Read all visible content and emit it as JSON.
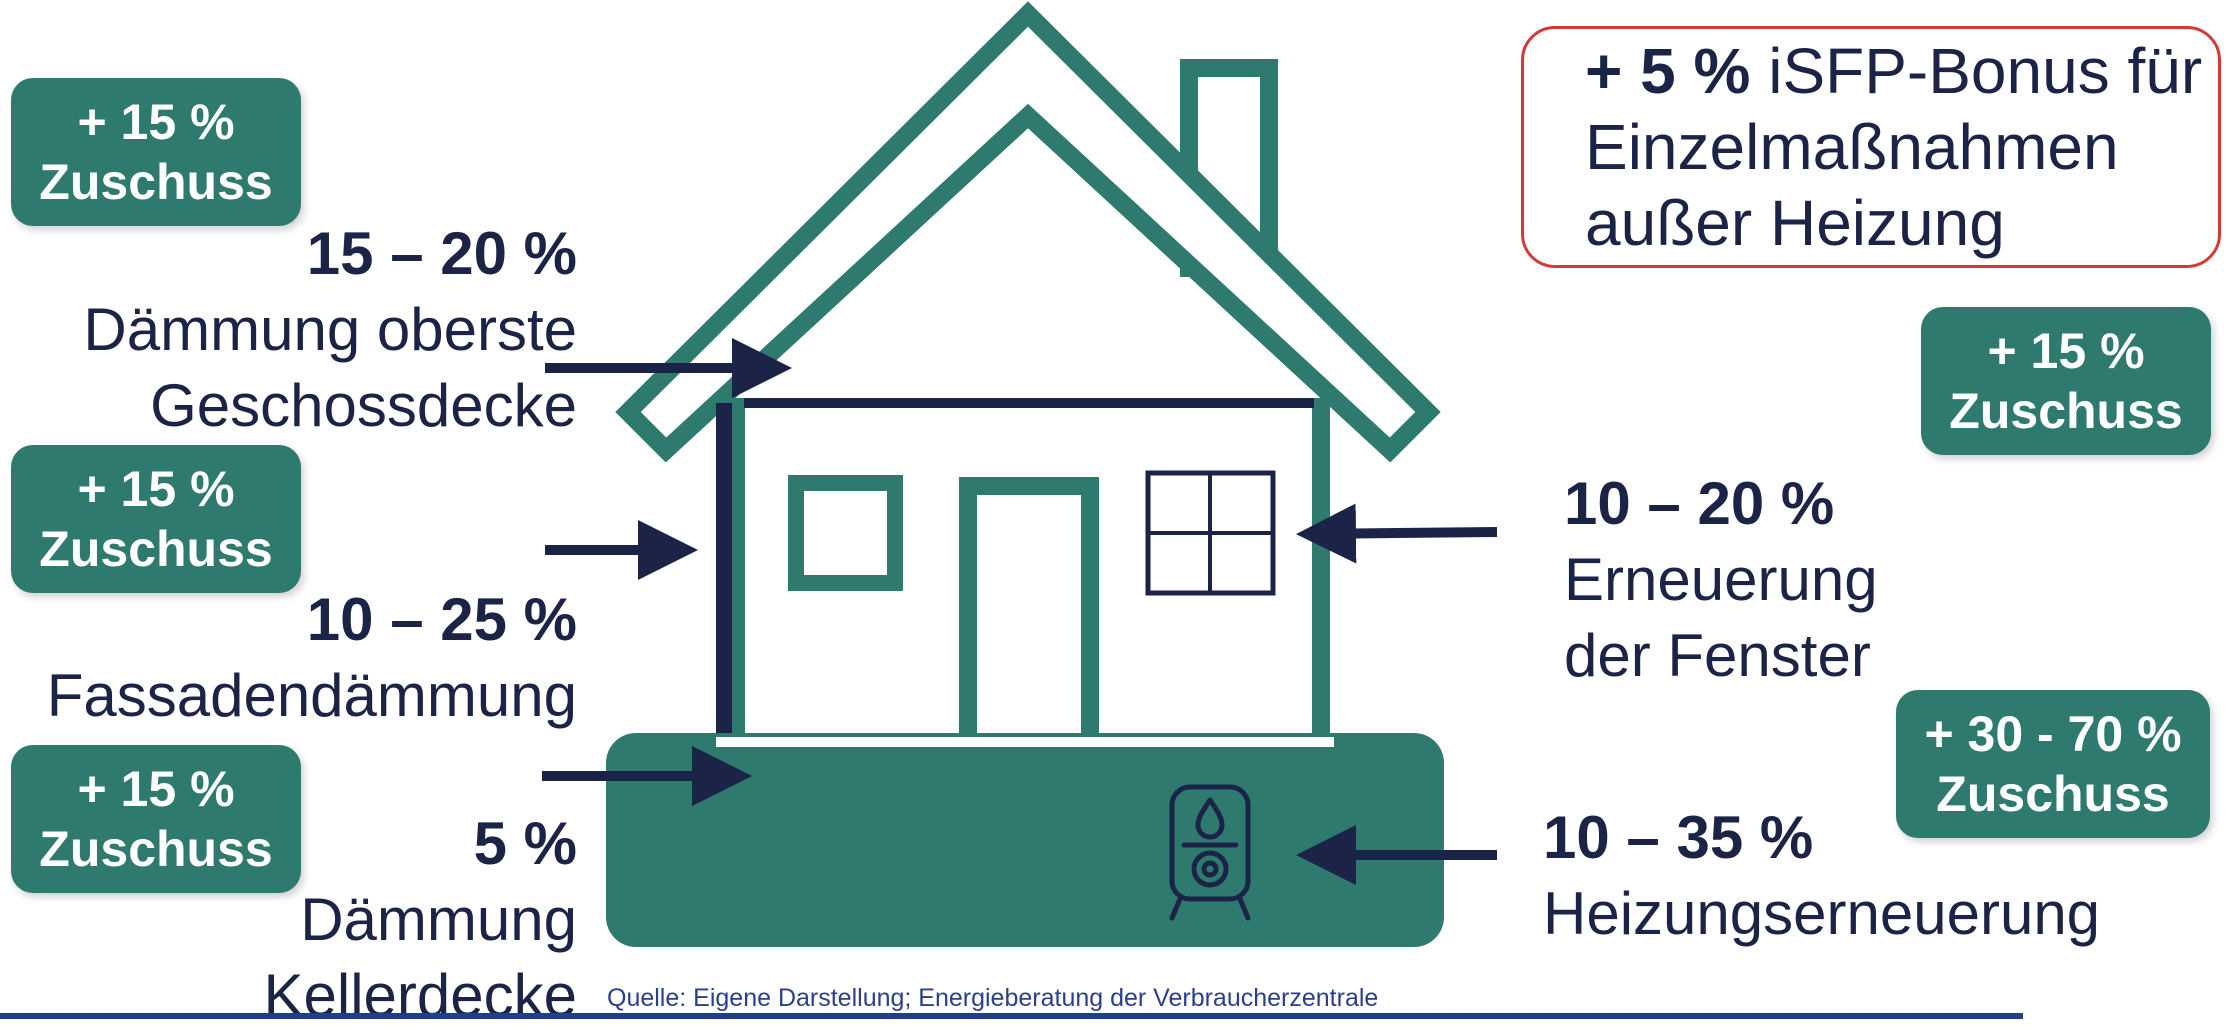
{
  "colors": {
    "teal": "#2e7a6e",
    "navy": "#1b2446",
    "red_border": "#d23a3a",
    "source_blue": "#2a3f8f"
  },
  "bonus": {
    "amount": "+ 5 %",
    "line1_rest": " iSFP-Bonus für",
    "line2": "Einzelmaßnahmen",
    "line3": "außer Heizung"
  },
  "badges": {
    "roof": {
      "line1": "+ 15 %",
      "line2": "Zuschuss"
    },
    "facade": {
      "line1": "+ 15 %",
      "line2": "Zuschuss"
    },
    "cellar": {
      "line1": "+ 15 %",
      "line2": "Zuschuss"
    },
    "window": {
      "line1": "+ 15 %",
      "line2": "Zuschuss"
    },
    "heating": {
      "line1": "+ 30 - 70 %",
      "line2": "Zuschuss"
    }
  },
  "measures": {
    "roof": {
      "percent": "15 – 20 %",
      "line1": "Dämmung oberste",
      "line2": "Geschossdecke"
    },
    "facade": {
      "percent": "10 – 25 %",
      "line1": "Fassadendämmung"
    },
    "cellar": {
      "percent": "5 %",
      "line1": "Dämmung",
      "line2": "Kellerdecke"
    },
    "window": {
      "percent": "10 – 20 %",
      "line1": "Erneuerung",
      "line2": "der Fenster"
    },
    "heating": {
      "percent": "10 – 35 %",
      "line1": "Heizungserneuerung"
    }
  },
  "icons": {
    "heater": "heat-pump-icon"
  },
  "source": "Quelle: Eigene Darstellung; Energieberatung der Verbraucherzentrale"
}
